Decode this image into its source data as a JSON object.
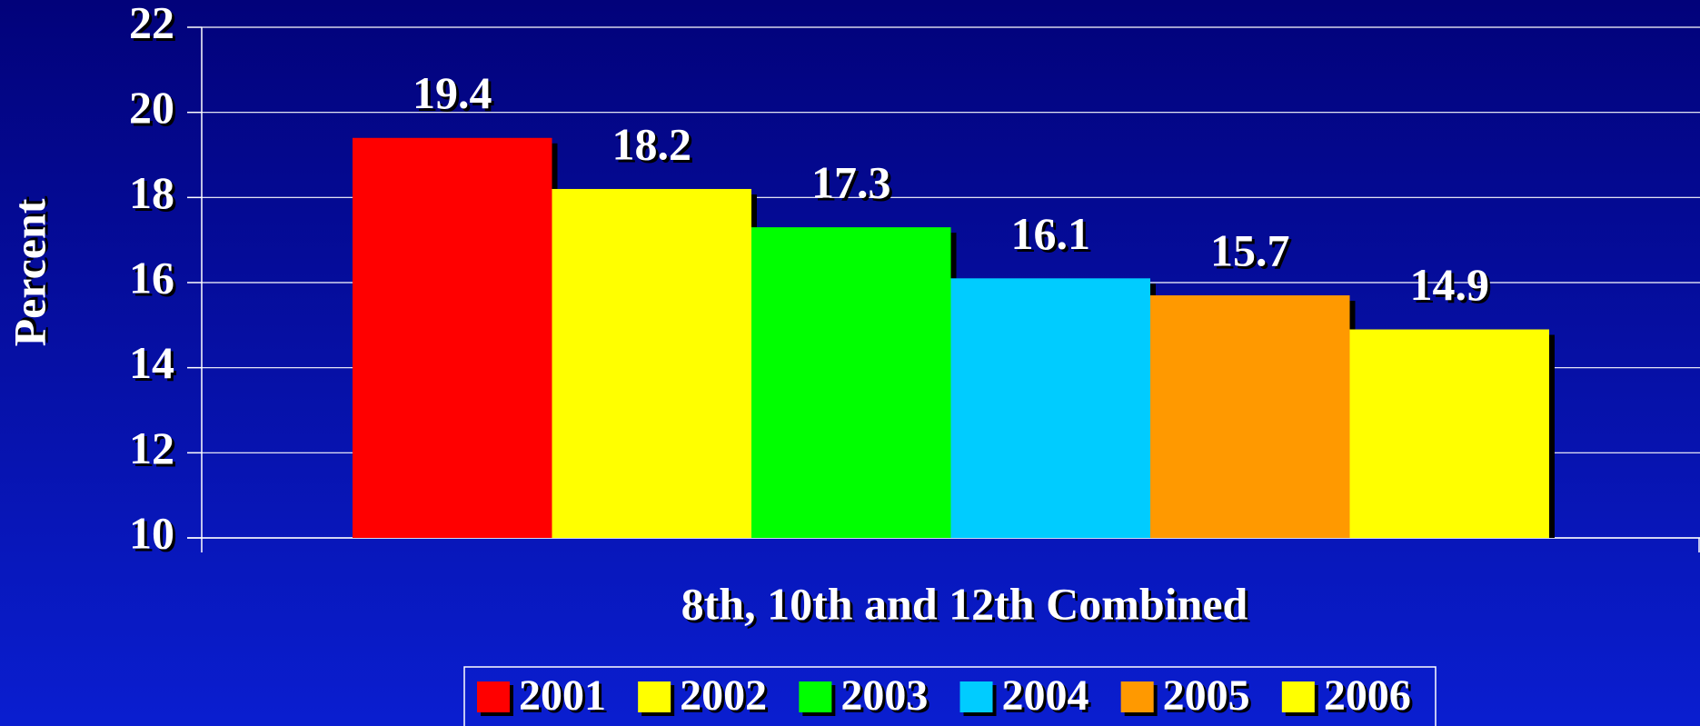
{
  "chart_data": {
    "type": "bar",
    "categories": [
      "8th, 10th and 12th Combined"
    ],
    "y_label": "Percent",
    "series": [
      {
        "name": "2001",
        "color": "#ff0000",
        "values": [
          19.4
        ]
      },
      {
        "name": "2002",
        "color": "#ffff00",
        "values": [
          18.2
        ]
      },
      {
        "name": "2003",
        "color": "#00ff00",
        "values": [
          17.3
        ]
      },
      {
        "name": "2004",
        "color": "#00ccff",
        "values": [
          16.1
        ]
      },
      {
        "name": "2005",
        "color": "#ff9900",
        "values": [
          15.7
        ]
      },
      {
        "name": "2006",
        "color": "#ffff00",
        "values": [
          14.9
        ]
      }
    ],
    "ylim": [
      10,
      22
    ],
    "yticks": [
      10,
      12,
      14,
      16,
      18,
      20,
      22
    ],
    "grid": true,
    "legend": "bottom"
  }
}
